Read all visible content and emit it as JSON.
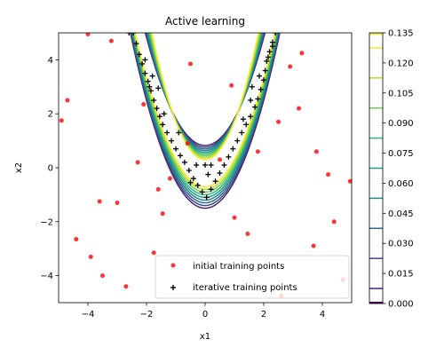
{
  "chart_data": {
    "type": "scatter",
    "title": "Active learning",
    "xlabel": "x1",
    "ylabel": "x2",
    "xlim": [
      -5,
      5
    ],
    "ylim": [
      -5,
      5
    ],
    "x_ticks": [
      -4,
      -2,
      0,
      2,
      4
    ],
    "y_ticks": [
      -4,
      -2,
      0,
      2,
      4
    ],
    "x_tick_labels": [
      "−4",
      "−2",
      "0",
      "2",
      "4"
    ],
    "y_tick_labels": [
      "−4",
      "−2",
      "0",
      "2",
      "4"
    ],
    "grid": false,
    "legend_position": "lower-right",
    "series": [
      {
        "name": "initial training points",
        "marker": "circle",
        "color": "#ff0000",
        "points": [
          [
            -4.0,
            4.95
          ],
          [
            -3.2,
            4.7
          ],
          [
            -4.7,
            2.5
          ],
          [
            -4.9,
            1.75
          ],
          [
            -2.1,
            2.35
          ],
          [
            -0.5,
            3.85
          ],
          [
            0.9,
            3.05
          ],
          [
            2.9,
            3.75
          ],
          [
            3.3,
            4.25
          ],
          [
            3.2,
            2.2
          ],
          [
            2.5,
            1.7
          ],
          [
            1.8,
            0.6
          ],
          [
            3.8,
            0.6
          ],
          [
            4.2,
            -0.25
          ],
          [
            4.95,
            -0.5
          ],
          [
            4.4,
            -2.0
          ],
          [
            3.7,
            -2.9
          ],
          [
            4.7,
            -4.15
          ],
          [
            2.6,
            -4.75
          ],
          [
            0.2,
            -4.45
          ],
          [
            -2.7,
            -4.4
          ],
          [
            -3.5,
            -4.0
          ],
          [
            -3.9,
            -3.3
          ],
          [
            -4.4,
            -2.65
          ],
          [
            -3.6,
            -1.25
          ],
          [
            -3.0,
            -1.3
          ],
          [
            -2.3,
            0.2
          ],
          [
            -1.6,
            -0.8
          ],
          [
            -1.45,
            -1.7
          ],
          [
            -1.2,
            -0.4
          ],
          [
            -0.6,
            0.9
          ],
          [
            1.0,
            -1.85
          ],
          [
            1.45,
            -2.45
          ],
          [
            0.5,
            0.3
          ],
          [
            -1.75,
            -3.15
          ]
        ]
      },
      {
        "name": "iterative training points",
        "marker": "plus",
        "color": "#000000",
        "points": [
          [
            -2.45,
            5.0
          ],
          [
            -2.35,
            4.6
          ],
          [
            -2.25,
            4.2
          ],
          [
            -2.15,
            3.85
          ],
          [
            -2.05,
            3.5
          ],
          [
            -1.95,
            3.2
          ],
          [
            -1.85,
            2.85
          ],
          [
            -1.75,
            2.5
          ],
          [
            -1.65,
            2.2
          ],
          [
            -1.55,
            1.9
          ],
          [
            -1.45,
            1.6
          ],
          [
            -1.3,
            1.3
          ],
          [
            -1.15,
            1.0
          ],
          [
            -1.0,
            0.7
          ],
          [
            -0.85,
            0.45
          ],
          [
            -0.7,
            0.2
          ],
          [
            -0.55,
            -0.1
          ],
          [
            -0.4,
            -0.4
          ],
          [
            -0.25,
            -0.65
          ],
          [
            -0.1,
            -0.9
          ],
          [
            0.05,
            -1.1
          ],
          [
            0.2,
            -0.8
          ],
          [
            0.35,
            -0.5
          ],
          [
            0.5,
            -0.2
          ],
          [
            0.65,
            0.1
          ],
          [
            0.8,
            0.4
          ],
          [
            0.95,
            0.7
          ],
          [
            1.1,
            1.0
          ],
          [
            1.25,
            1.3
          ],
          [
            1.4,
            1.6
          ],
          [
            1.55,
            1.9
          ],
          [
            1.7,
            2.25
          ],
          [
            1.8,
            2.55
          ],
          [
            1.9,
            2.9
          ],
          [
            2.0,
            3.25
          ],
          [
            2.05,
            3.6
          ],
          [
            2.1,
            3.95
          ],
          [
            2.2,
            4.3
          ],
          [
            2.3,
            4.65
          ],
          [
            2.4,
            5.0
          ],
          [
            -2.6,
            5.0
          ],
          [
            -1.8,
            3.4
          ],
          [
            -1.4,
            2.0
          ],
          [
            -0.3,
            0.1
          ],
          [
            0.0,
            0.1
          ],
          [
            0.2,
            0.1
          ],
          [
            -0.5,
            -0.55
          ],
          [
            0.1,
            -0.25
          ],
          [
            1.55,
            2.5
          ],
          [
            1.85,
            3.4
          ],
          [
            2.15,
            4.1
          ],
          [
            2.3,
            4.5
          ],
          [
            -2.05,
            4.0
          ],
          [
            -1.6,
            2.95
          ],
          [
            -1.9,
            3.0
          ],
          [
            1.3,
            1.8
          ],
          [
            1.6,
            3.0
          ],
          [
            -0.9,
            1.3
          ]
        ]
      }
    ],
    "contour": {
      "description_levels": [
        0.015,
        0.03,
        0.045,
        0.06,
        0.075,
        0.09,
        0.105,
        0.12,
        0.135
      ],
      "colors": [
        "#482475",
        "#3e4989",
        "#31688e",
        "#26828e",
        "#1f9e89",
        "#35b779",
        "#6ece58",
        "#b5de2b",
        "#fde725"
      ]
    },
    "colorbar": {
      "min": 0.0,
      "max": 0.135,
      "tick_values": [
        0.0,
        0.015,
        0.03,
        0.045,
        0.06,
        0.075,
        0.09,
        0.105,
        0.12,
        0.135
      ],
      "tick_labels": [
        "0.000",
        "0.015",
        "0.030",
        "0.045",
        "0.060",
        "0.075",
        "0.090",
        "0.105",
        "0.120",
        "0.135"
      ],
      "colors": [
        "#440154",
        "#482475",
        "#3e4989",
        "#31688e",
        "#26828e",
        "#1f9e89",
        "#35b779",
        "#6ece58",
        "#b5de2b",
        "#fde725"
      ]
    }
  }
}
